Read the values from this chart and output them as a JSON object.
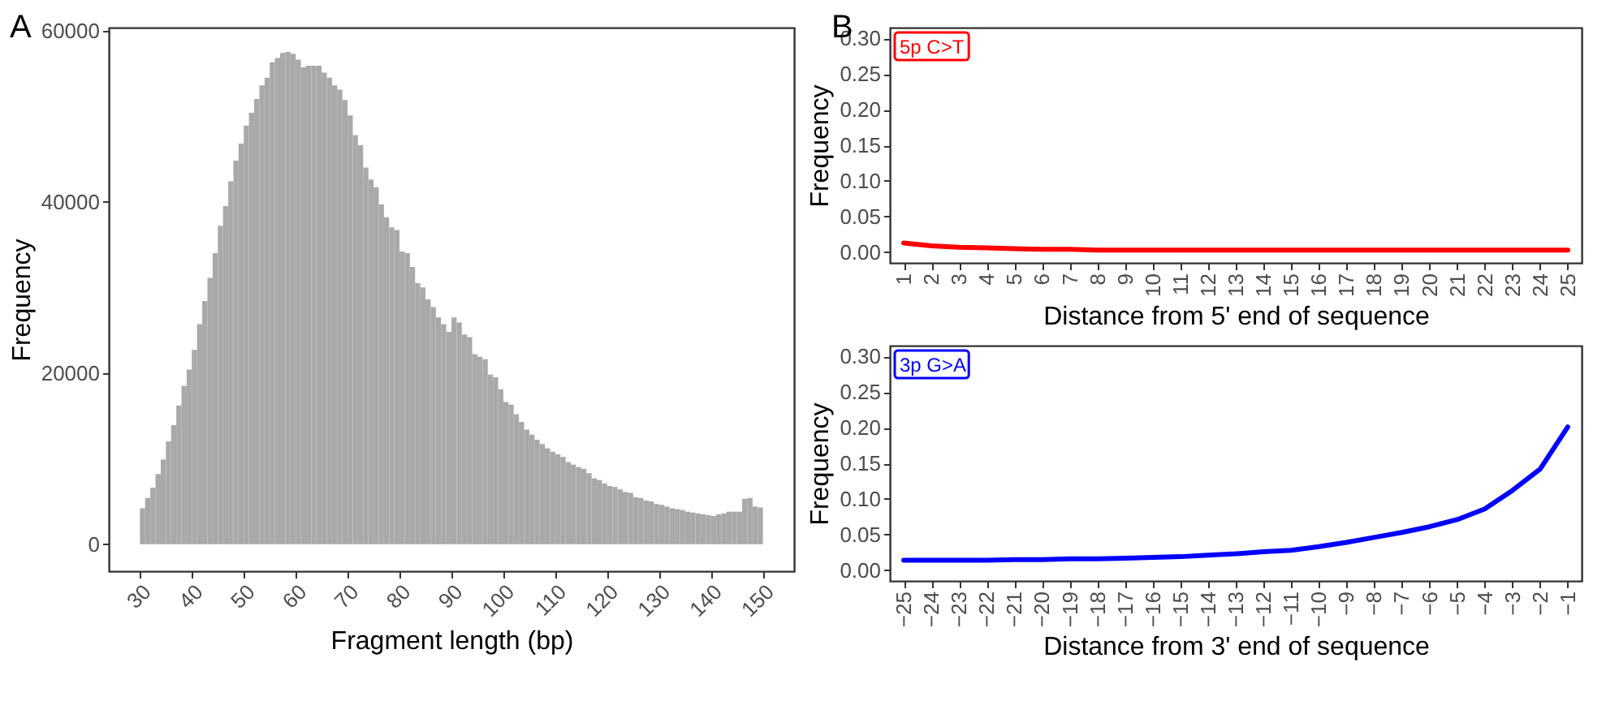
{
  "chart_data": [
    {
      "type": "histogram",
      "xlabel": "Fragment length (bp)",
      "ylabel": "Frequency",
      "color": "#a9a9a9",
      "annotations": [
        "A"
      ],
      "bins": [
        30,
        31,
        32,
        33,
        34,
        35,
        36,
        37,
        38,
        39,
        40,
        41,
        42,
        43,
        44,
        45,
        46,
        47,
        48,
        49,
        50,
        51,
        52,
        53,
        54,
        55,
        56,
        57,
        58,
        59,
        60,
        61,
        62,
        63,
        64,
        65,
        66,
        67,
        68,
        69,
        70,
        71,
        72,
        73,
        74,
        75,
        76,
        77,
        78,
        79,
        80,
        81,
        82,
        83,
        84,
        85,
        86,
        87,
        88,
        89,
        90,
        91,
        92,
        93,
        94,
        95,
        96,
        97,
        98,
        99,
        100,
        101,
        102,
        103,
        104,
        105,
        106,
        107,
        108,
        109,
        110,
        111,
        112,
        113,
        114,
        115,
        116,
        117,
        118,
        119,
        120,
        121,
        122,
        123,
        124,
        125,
        126,
        127,
        128,
        129,
        130,
        131,
        132,
        133,
        134,
        135,
        136,
        137,
        138,
        139,
        140,
        141,
        142,
        143,
        144,
        145,
        146,
        147,
        148,
        149,
        150
      ],
      "values": [
        4200,
        5400,
        6600,
        8200,
        9900,
        12000,
        13900,
        16200,
        18500,
        20400,
        22700,
        25700,
        28400,
        31100,
        34000,
        37200,
        39500,
        42400,
        44800,
        46800,
        48900,
        50400,
        52000,
        53600,
        54500,
        56300,
        56800,
        57400,
        57500,
        57300,
        56600,
        55700,
        55900,
        55900,
        55900,
        55100,
        54500,
        53600,
        53100,
        51900,
        50100,
        47800,
        46600,
        44000,
        42600,
        41700,
        39700,
        38200,
        37000,
        36700,
        34200,
        34000,
        32400,
        30500,
        30000,
        28600,
        27700,
        26500,
        25700,
        24800,
        26500,
        25900,
        24500,
        24200,
        22200,
        21900,
        21600,
        19800,
        19500,
        18100,
        16600,
        16300,
        15200,
        14300,
        13400,
        12800,
        12200,
        11700,
        11200,
        10800,
        10500,
        10200,
        9600,
        9300,
        9000,
        8800,
        8300,
        7700,
        7500,
        7100,
        6800,
        6700,
        6400,
        6100,
        6000,
        5500,
        5400,
        5100,
        5000,
        4700,
        4600,
        4400,
        4200,
        4100,
        4000,
        3800,
        3700,
        3600,
        3500,
        3400,
        3300,
        3500,
        3600,
        3800,
        3800,
        3800,
        5300,
        5400,
        4400,
        4300
      ],
      "xlim": [
        24,
        156
      ],
      "xticks": [
        30,
        40,
        50,
        60,
        70,
        80,
        90,
        100,
        110,
        120,
        130,
        140,
        150
      ],
      "ylim": [
        -3150,
        60350
      ],
      "yticks": [
        0,
        20000,
        40000,
        60000
      ]
    },
    {
      "type": "line",
      "xlabel": "Distance from 5' end of sequence",
      "ylabel": "Frequency",
      "legend": "top left",
      "annotations": [
        "B"
      ],
      "categories": [
        "1",
        "2",
        "3",
        "4",
        "5",
        "6",
        "7",
        "8",
        "9",
        "10",
        "11",
        "12",
        "13",
        "14",
        "15",
        "16",
        "17",
        "18",
        "19",
        "20",
        "21",
        "22",
        "23",
        "24",
        "25"
      ],
      "series": [
        {
          "name": "5p C>T",
          "color": "#ff0000",
          "values": [
            0.013,
            0.009,
            0.007,
            0.006,
            0.005,
            0.004,
            0.004,
            0.003,
            0.003,
            0.003,
            0.003,
            0.003,
            0.003,
            0.003,
            0.003,
            0.003,
            0.003,
            0.003,
            0.003,
            0.003,
            0.003,
            0.003,
            0.003,
            0.003,
            0.003
          ]
        }
      ],
      "ylim": [
        -0.015,
        0.315
      ],
      "yticks": [
        {
          "value": 0,
          "label": "0.00"
        },
        {
          "value": 0.05,
          "label": "0.05"
        },
        {
          "value": 0.1,
          "label": "0.10"
        },
        {
          "value": 0.15,
          "label": "0.15"
        },
        {
          "value": 0.2,
          "label": "0.20"
        },
        {
          "value": 0.25,
          "label": "0.25"
        },
        {
          "value": 0.3,
          "label": "0.30"
        }
      ]
    },
    {
      "type": "line",
      "xlabel": "Distance from 3' end of sequence",
      "ylabel": "Frequency",
      "legend": "top left",
      "categories": [
        "−25",
        "−24",
        "−23",
        "−22",
        "−21",
        "−20",
        "−19",
        "−18",
        "−17",
        "−16",
        "−15",
        "−14",
        "−13",
        "−12",
        "−11",
        "−10",
        "−9",
        "−8",
        "−7",
        "−6",
        "−5",
        "−4",
        "−3",
        "−2",
        "−1"
      ],
      "series": [
        {
          "name": "3p G>A",
          "color": "#0000ff",
          "values": [
            0.014,
            0.014,
            0.014,
            0.014,
            0.015,
            0.015,
            0.016,
            0.016,
            0.017,
            0.018,
            0.019,
            0.021,
            0.023,
            0.026,
            0.028,
            0.033,
            0.039,
            0.046,
            0.053,
            0.061,
            0.071,
            0.086,
            0.112,
            0.142,
            0.201
          ]
        }
      ],
      "ylim": [
        -0.015,
        0.315
      ],
      "yticks": [
        {
          "value": 0,
          "label": "0.00"
        },
        {
          "value": 0.05,
          "label": "0.05"
        },
        {
          "value": 0.1,
          "label": "0.10"
        },
        {
          "value": 0.15,
          "label": "0.15"
        },
        {
          "value": 0.2,
          "label": "0.20"
        },
        {
          "value": 0.25,
          "label": "0.25"
        },
        {
          "value": 0.3,
          "label": "0.30"
        }
      ]
    }
  ]
}
